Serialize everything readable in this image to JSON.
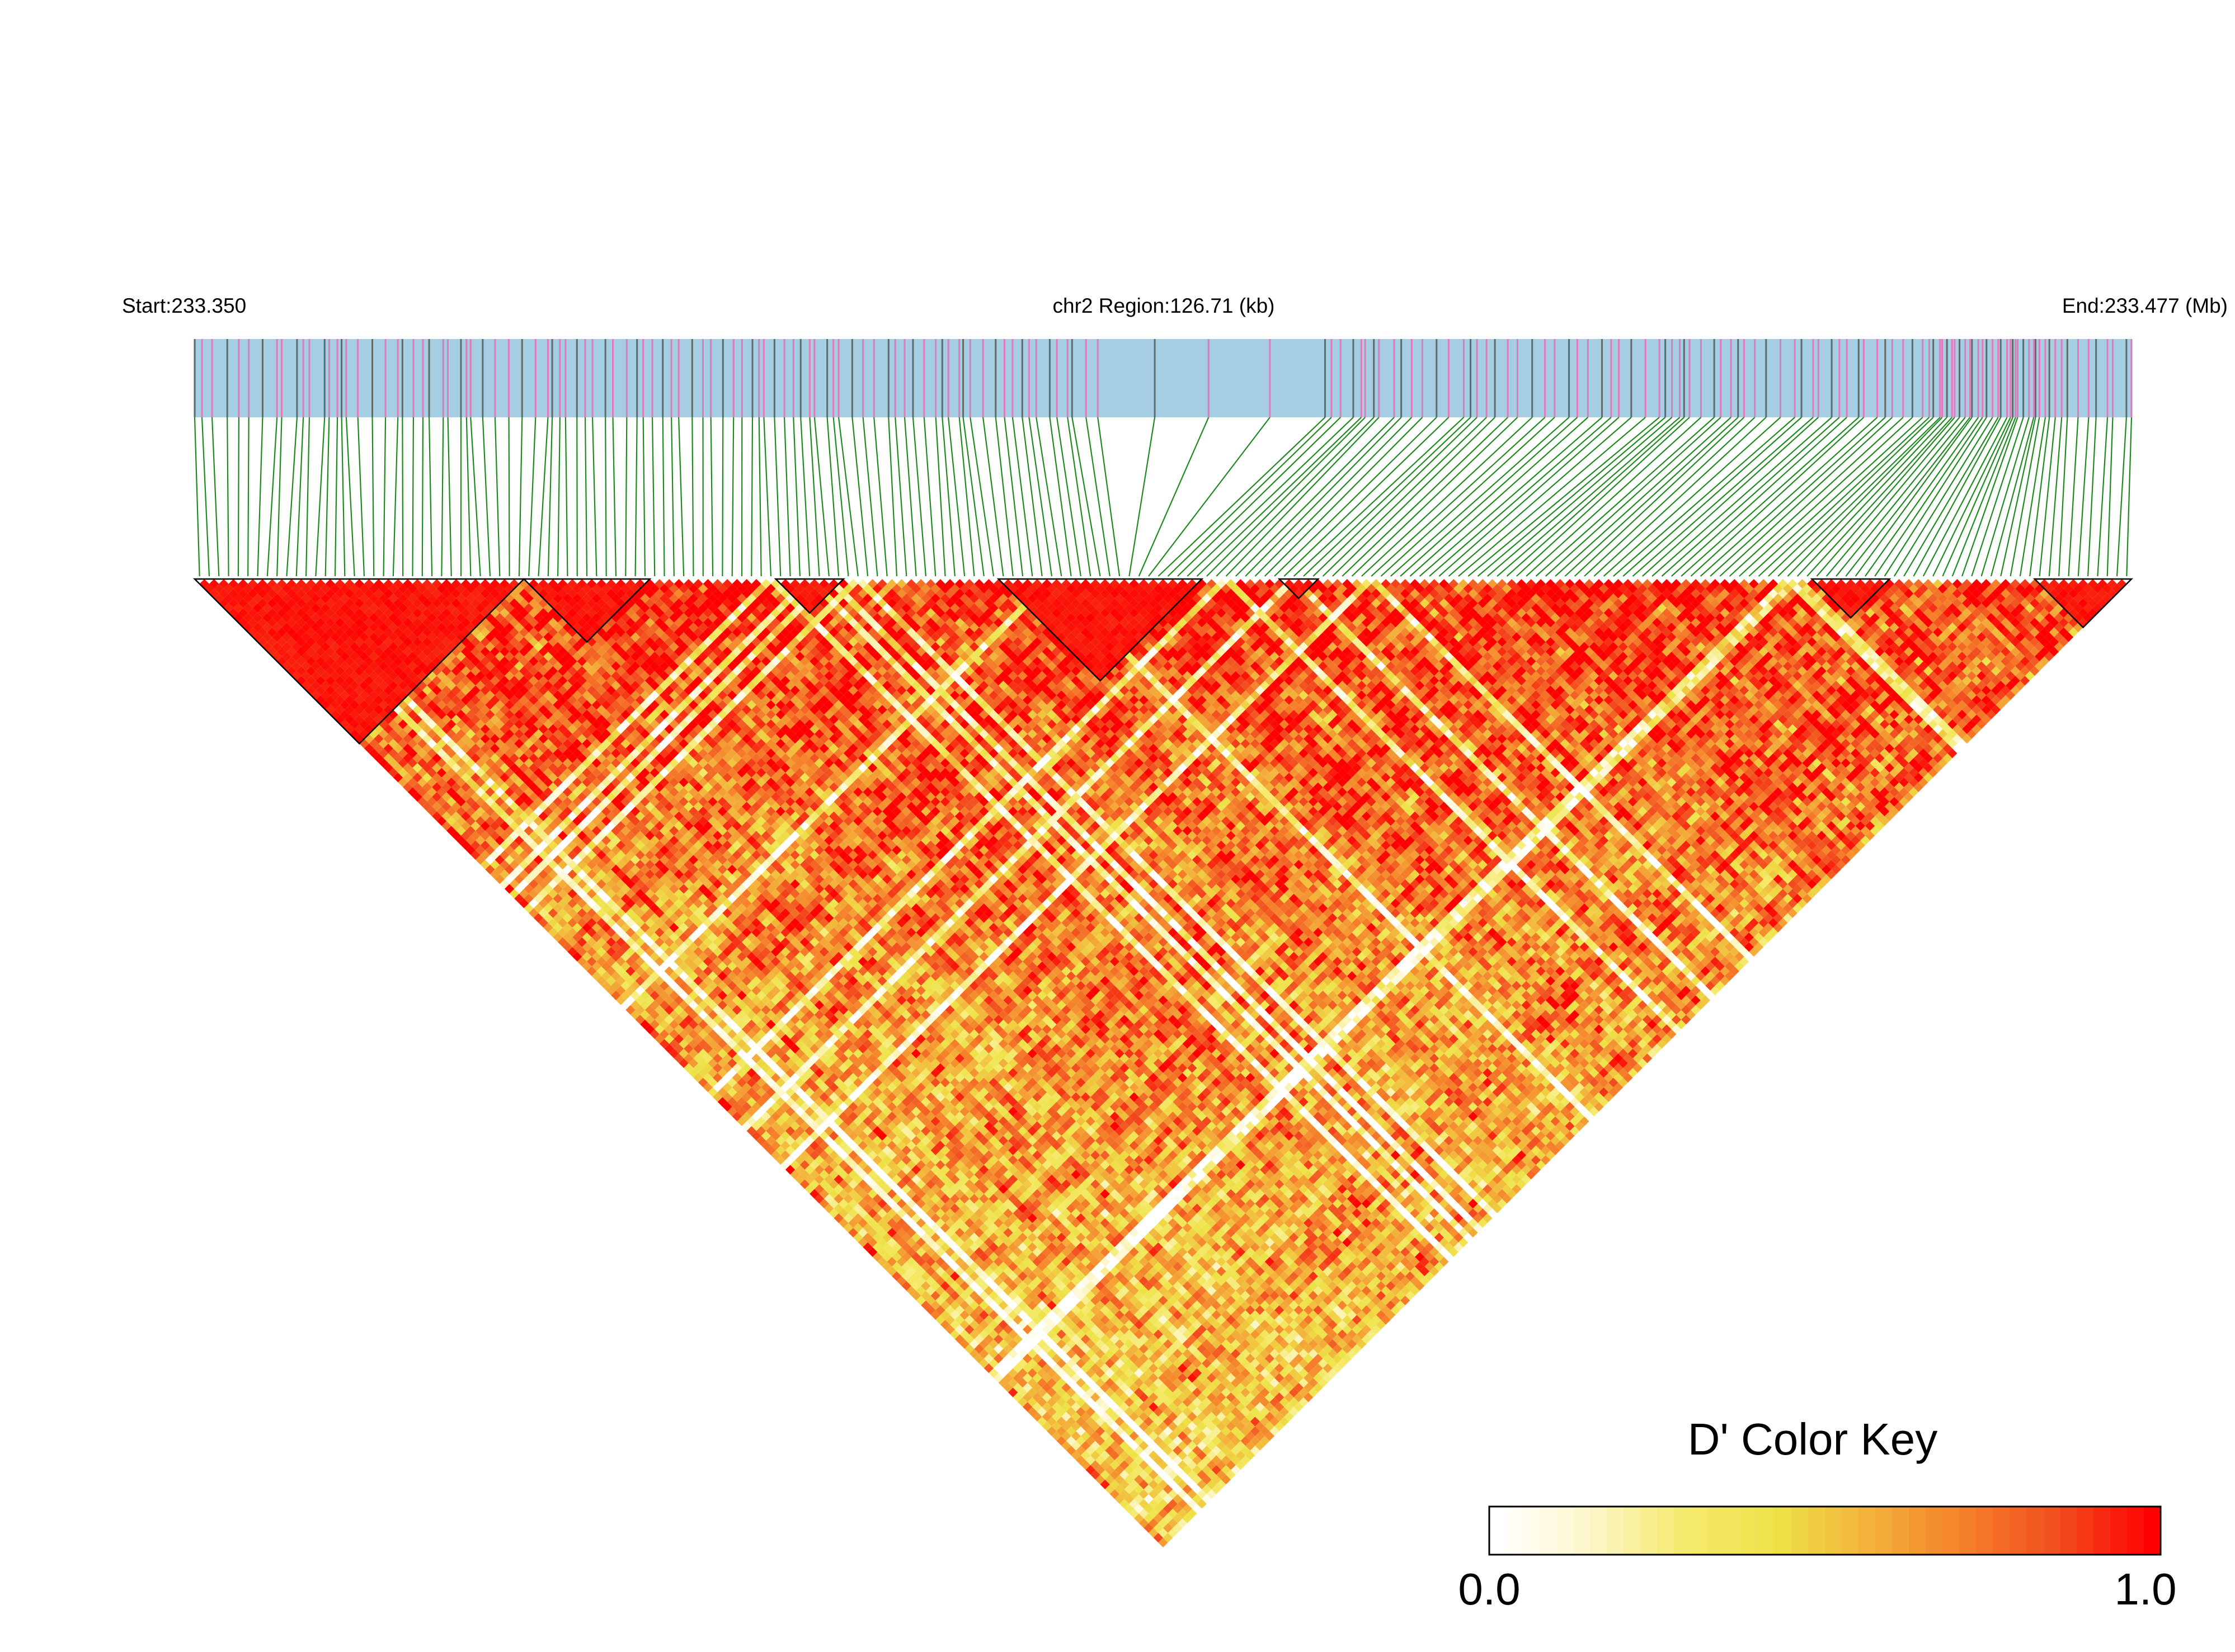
{
  "chart_data": {
    "type": "heatmap",
    "title": "",
    "header": {
      "start_label": "Start:233.350",
      "region_label": "chr2 Region:126.71 (kb)",
      "end_label": "End:233.477 (Mb)"
    },
    "region": {
      "chromosome": "chr2",
      "start_mb": 233.35,
      "end_mb": 233.477,
      "length_kb": 126.71
    },
    "snp_count": 200,
    "track_colors": {
      "band": "#a6cee3",
      "snp_marker_a": "#e07ab8",
      "snp_marker_b": "#5f6b6b",
      "connector": "#1e8a1e"
    },
    "metric": "D'",
    "ld_blocks": [
      {
        "first_snp": 0,
        "last_snp": 33
      },
      {
        "first_snp": 34,
        "last_snp": 46
      },
      {
        "first_snp": 60,
        "last_snp": 66
      },
      {
        "first_snp": 83,
        "last_snp": 103
      },
      {
        "first_snp": 112,
        "last_snp": 115
      },
      {
        "first_snp": 167,
        "last_snp": 174
      },
      {
        "first_snp": 190,
        "last_snp": 199
      }
    ],
    "legend": {
      "title": "D' Color Key",
      "min_label": "0.0",
      "max_label": "1.0",
      "min": 0.0,
      "max": 1.0,
      "colors": [
        "#ffffff",
        "#fdf6c8",
        "#f5ea6e",
        "#eee248",
        "#f3b03a",
        "#f57f2a",
        "#f24d1f",
        "#ff0000"
      ]
    }
  }
}
